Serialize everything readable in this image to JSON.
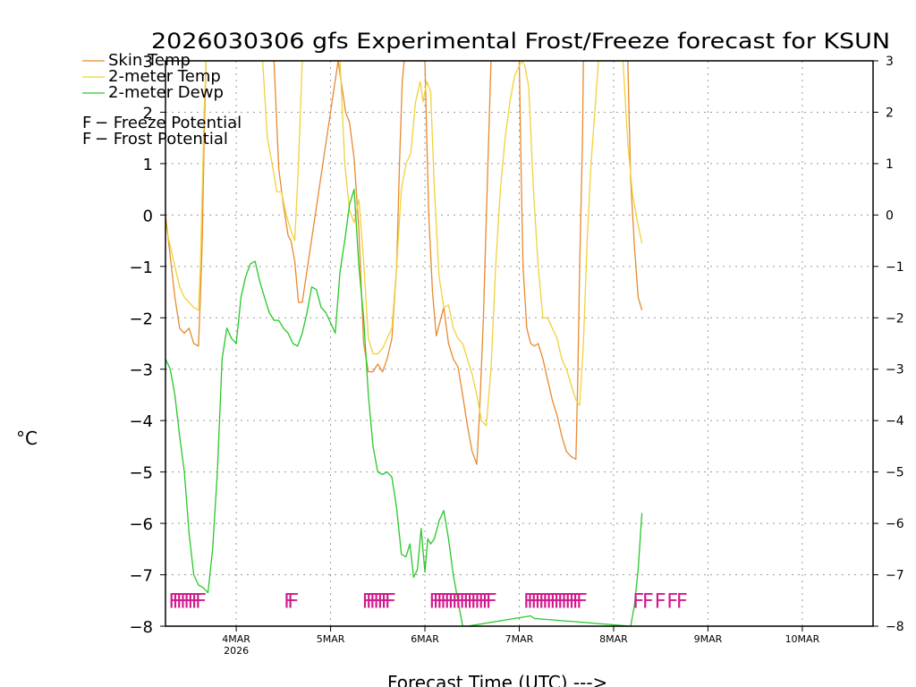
{
  "chart_data": {
    "type": "line",
    "title": "2026030306 gfs Experimental Frost/Freeze forecast for KSUN",
    "xlabel": "Forecast Time (UTC) --->",
    "ylabel": "°C",
    "ylim": [
      -8,
      3
    ],
    "yticks": [
      -8,
      -7,
      -6,
      -5,
      -4,
      -3,
      -2,
      -1,
      0,
      1,
      2,
      3
    ],
    "ytick_labels": [
      "−8",
      "−7",
      "−6",
      "−5",
      "−4",
      "−3",
      "−2",
      "−1",
      "0",
      "1",
      "2",
      "3"
    ],
    "xlim": [
      3.25,
      10.75
    ],
    "xticks": [
      {
        "day": 4,
        "label": "4MAR",
        "sublabel": "2026"
      },
      {
        "day": 5,
        "label": "5MAR",
        "sublabel": ""
      },
      {
        "day": 6,
        "label": "6MAR",
        "sublabel": ""
      },
      {
        "day": 7,
        "label": "7MAR",
        "sublabel": ""
      },
      {
        "day": 8,
        "label": "8MAR",
        "sublabel": ""
      },
      {
        "day": 9,
        "label": "9MAR",
        "sublabel": ""
      },
      {
        "day": 10,
        "label": "10MAR",
        "sublabel": ""
      }
    ],
    "grid": true,
    "legend": [
      {
        "label": "Skin Temp",
        "color": "#e88a2e"
      },
      {
        "label": "2-meter Temp",
        "color": "#f0d23a"
      },
      {
        "label": "2-meter Dewp",
        "color": "#28c828"
      }
    ],
    "marker_legend": [
      {
        "symbol": "F",
        "label": " − Freeze Potential",
        "color": "#d01a8c"
      },
      {
        "symbol": "F",
        "label": " − Frost Potential",
        "color": "#4a5ae8"
      }
    ],
    "series": [
      {
        "name": "Skin Temp",
        "color": "#e88a2e",
        "x": [
          3.25,
          3.3,
          3.35,
          3.4,
          3.45,
          3.5,
          3.55,
          3.6,
          3.62,
          3.64,
          3.66,
          3.68,
          4.4,
          4.45,
          4.5,
          4.55,
          4.58,
          4.62,
          4.66,
          4.7,
          5.08,
          5.12,
          5.16,
          5.2,
          5.25,
          5.3,
          5.35,
          5.4,
          5.45,
          5.5,
          5.55,
          5.6,
          5.65,
          5.7,
          5.73,
          5.76,
          5.78,
          6.0,
          6.02,
          6.04,
          6.08,
          6.12,
          6.17,
          6.2,
          6.25,
          6.3,
          6.35,
          6.4,
          6.45,
          6.5,
          6.55,
          6.58,
          6.62,
          6.66,
          6.7,
          7.0,
          7.02,
          7.04,
          7.08,
          7.12,
          7.16,
          7.2,
          7.25,
          7.3,
          7.35,
          7.4,
          7.45,
          7.5,
          7.55,
          7.6,
          7.62,
          7.64,
          7.67,
          7.68,
          8.15,
          8.18,
          8.22,
          8.26,
          8.3
        ],
        "values": [
          0.0,
          -0.8,
          -1.6,
          -2.2,
          -2.3,
          -2.2,
          -2.5,
          -2.55,
          -1.6,
          -0.5,
          1.5,
          3.0,
          3.0,
          0.9,
          0.2,
          -0.4,
          -0.5,
          -0.9,
          -1.7,
          -1.7,
          3.0,
          2.5,
          2.0,
          1.8,
          1.1,
          -0.3,
          -2.5,
          -3.05,
          -3.05,
          -2.9,
          -3.05,
          -2.8,
          -2.4,
          -1.0,
          1.0,
          2.6,
          3.0,
          3.0,
          1.5,
          0.0,
          -1.5,
          -2.35,
          -2.0,
          -1.8,
          -2.5,
          -2.8,
          -2.95,
          -3.5,
          -4.1,
          -4.6,
          -4.85,
          -3.8,
          -2.0,
          0.5,
          3.0,
          3.0,
          0.8,
          -1.0,
          -2.2,
          -2.5,
          -2.55,
          -2.5,
          -2.8,
          -3.2,
          -3.6,
          -3.9,
          -4.3,
          -4.6,
          -4.7,
          -4.75,
          -3.2,
          -1.0,
          1.5,
          3.0,
          3.0,
          0.7,
          -0.6,
          -1.6,
          -1.85
        ]
      },
      {
        "name": "2-meter Temp",
        "color": "#f0d23a",
        "x": [
          3.25,
          3.3,
          3.35,
          3.4,
          3.45,
          3.5,
          3.55,
          3.6,
          3.62,
          3.64,
          3.66,
          3.68,
          4.28,
          4.33,
          4.38,
          4.43,
          4.48,
          4.53,
          4.58,
          4.62,
          4.66,
          4.7,
          5.1,
          5.15,
          5.2,
          5.25,
          5.3,
          5.35,
          5.4,
          5.45,
          5.5,
          5.55,
          5.6,
          5.65,
          5.7,
          5.75,
          5.8,
          5.85,
          5.9,
          5.95,
          5.98,
          6.02,
          6.06,
          6.1,
          6.15,
          6.2,
          6.25,
          6.3,
          6.35,
          6.4,
          6.45,
          6.5,
          6.55,
          6.6,
          6.65,
          6.7,
          6.75,
          6.8,
          6.85,
          6.9,
          6.95,
          7.0,
          7.03,
          7.06,
          7.1,
          7.15,
          7.2,
          7.25,
          7.3,
          7.35,
          7.4,
          7.45,
          7.5,
          7.55,
          7.6,
          7.64,
          7.68,
          7.72,
          7.76,
          7.8,
          7.84,
          8.1,
          8.15,
          8.2,
          8.25,
          8.3
        ],
        "values": [
          -0.2,
          -0.6,
          -1.0,
          -1.4,
          -1.6,
          -1.7,
          -1.8,
          -1.85,
          -1.0,
          0.5,
          2.0,
          3.0,
          3.0,
          1.5,
          1.0,
          0.45,
          0.45,
          0.0,
          -0.3,
          -0.5,
          1.0,
          3.0,
          3.0,
          1.0,
          0.1,
          -0.15,
          0.3,
          -0.9,
          -2.4,
          -2.7,
          -2.7,
          -2.6,
          -2.4,
          -2.2,
          -1.0,
          0.5,
          1.0,
          1.2,
          2.2,
          2.6,
          2.2,
          2.6,
          2.4,
          0.5,
          -1.2,
          -1.8,
          -1.75,
          -2.2,
          -2.4,
          -2.5,
          -2.8,
          -3.1,
          -3.5,
          -4.0,
          -4.1,
          -3.0,
          -1.0,
          0.5,
          1.5,
          2.2,
          2.7,
          2.9,
          3.0,
          2.9,
          2.5,
          0.5,
          -1.0,
          -2.0,
          -2.0,
          -2.2,
          -2.4,
          -2.8,
          -3.0,
          -3.3,
          -3.6,
          -3.7,
          -2.5,
          -0.5,
          1.0,
          2.0,
          3.0,
          3.0,
          1.4,
          0.4,
          -0.1,
          -0.55
        ]
      },
      {
        "name": "2-meter Dewp",
        "color": "#28c828",
        "x": [
          3.25,
          3.3,
          3.35,
          3.4,
          3.45,
          3.5,
          3.55,
          3.6,
          3.65,
          3.7,
          3.75,
          3.8,
          3.85,
          3.9,
          3.95,
          4.0,
          4.05,
          4.1,
          4.15,
          4.2,
          4.25,
          4.3,
          4.35,
          4.4,
          4.45,
          4.5,
          4.55,
          4.6,
          4.65,
          4.7,
          4.75,
          4.8,
          4.85,
          4.9,
          4.95,
          5.0,
          5.05,
          5.1,
          5.15,
          5.2,
          5.25,
          5.3,
          5.35,
          5.4,
          5.45,
          5.5,
          5.55,
          5.6,
          5.65,
          5.7,
          5.75,
          5.8,
          5.84,
          5.88,
          5.92,
          5.96,
          6.0,
          6.03,
          6.06,
          6.1,
          6.15,
          6.2,
          6.25,
          6.3,
          6.35,
          6.4,
          6.45,
          7.12,
          7.16,
          8.18,
          8.22,
          8.26,
          8.3
        ],
        "values": [
          -2.8,
          -3.0,
          -3.5,
          -4.3,
          -5.0,
          -6.2,
          -7.0,
          -7.2,
          -7.25,
          -7.35,
          -6.5,
          -5.0,
          -2.8,
          -2.2,
          -2.4,
          -2.5,
          -1.6,
          -1.2,
          -0.95,
          -0.9,
          -1.3,
          -1.6,
          -1.9,
          -2.05,
          -2.05,
          -2.2,
          -2.3,
          -2.5,
          -2.55,
          -2.3,
          -1.9,
          -1.4,
          -1.45,
          -1.8,
          -1.9,
          -2.1,
          -2.3,
          -1.1,
          -0.5,
          0.2,
          0.5,
          -1.0,
          -2.0,
          -3.5,
          -4.5,
          -5.0,
          -5.05,
          -5.0,
          -5.1,
          -5.7,
          -6.6,
          -6.65,
          -6.4,
          -7.05,
          -6.9,
          -6.1,
          -6.95,
          -6.3,
          -6.4,
          -6.3,
          -5.95,
          -5.75,
          -6.3,
          -7.0,
          -7.5,
          -8.0,
          -8.0,
          -7.8,
          -7.85,
          -8.0,
          -7.6,
          -6.9,
          -5.8
        ]
      }
    ],
    "markers": {
      "label_text": "F",
      "y": -7.5,
      "freeze": [
        3.28,
        3.32,
        3.36,
        3.4,
        3.44,
        3.48,
        3.52,
        3.56,
        4.5,
        4.54,
        5.33,
        5.37,
        5.41,
        5.45,
        5.49,
        5.53,
        5.57,
        6.04,
        6.08,
        6.12,
        6.16,
        6.2,
        6.24,
        6.28,
        6.32,
        6.36,
        6.4,
        6.44,
        6.48,
        6.52,
        6.56,
        6.6,
        6.64,
        7.04,
        7.08,
        7.12,
        7.16,
        7.2,
        7.24,
        7.28,
        7.32,
        7.36,
        7.4,
        7.44,
        7.48,
        7.52,
        7.56,
        7.6,
        8.2,
        8.3,
        8.43,
        8.56,
        8.66
      ],
      "frost": []
    }
  }
}
